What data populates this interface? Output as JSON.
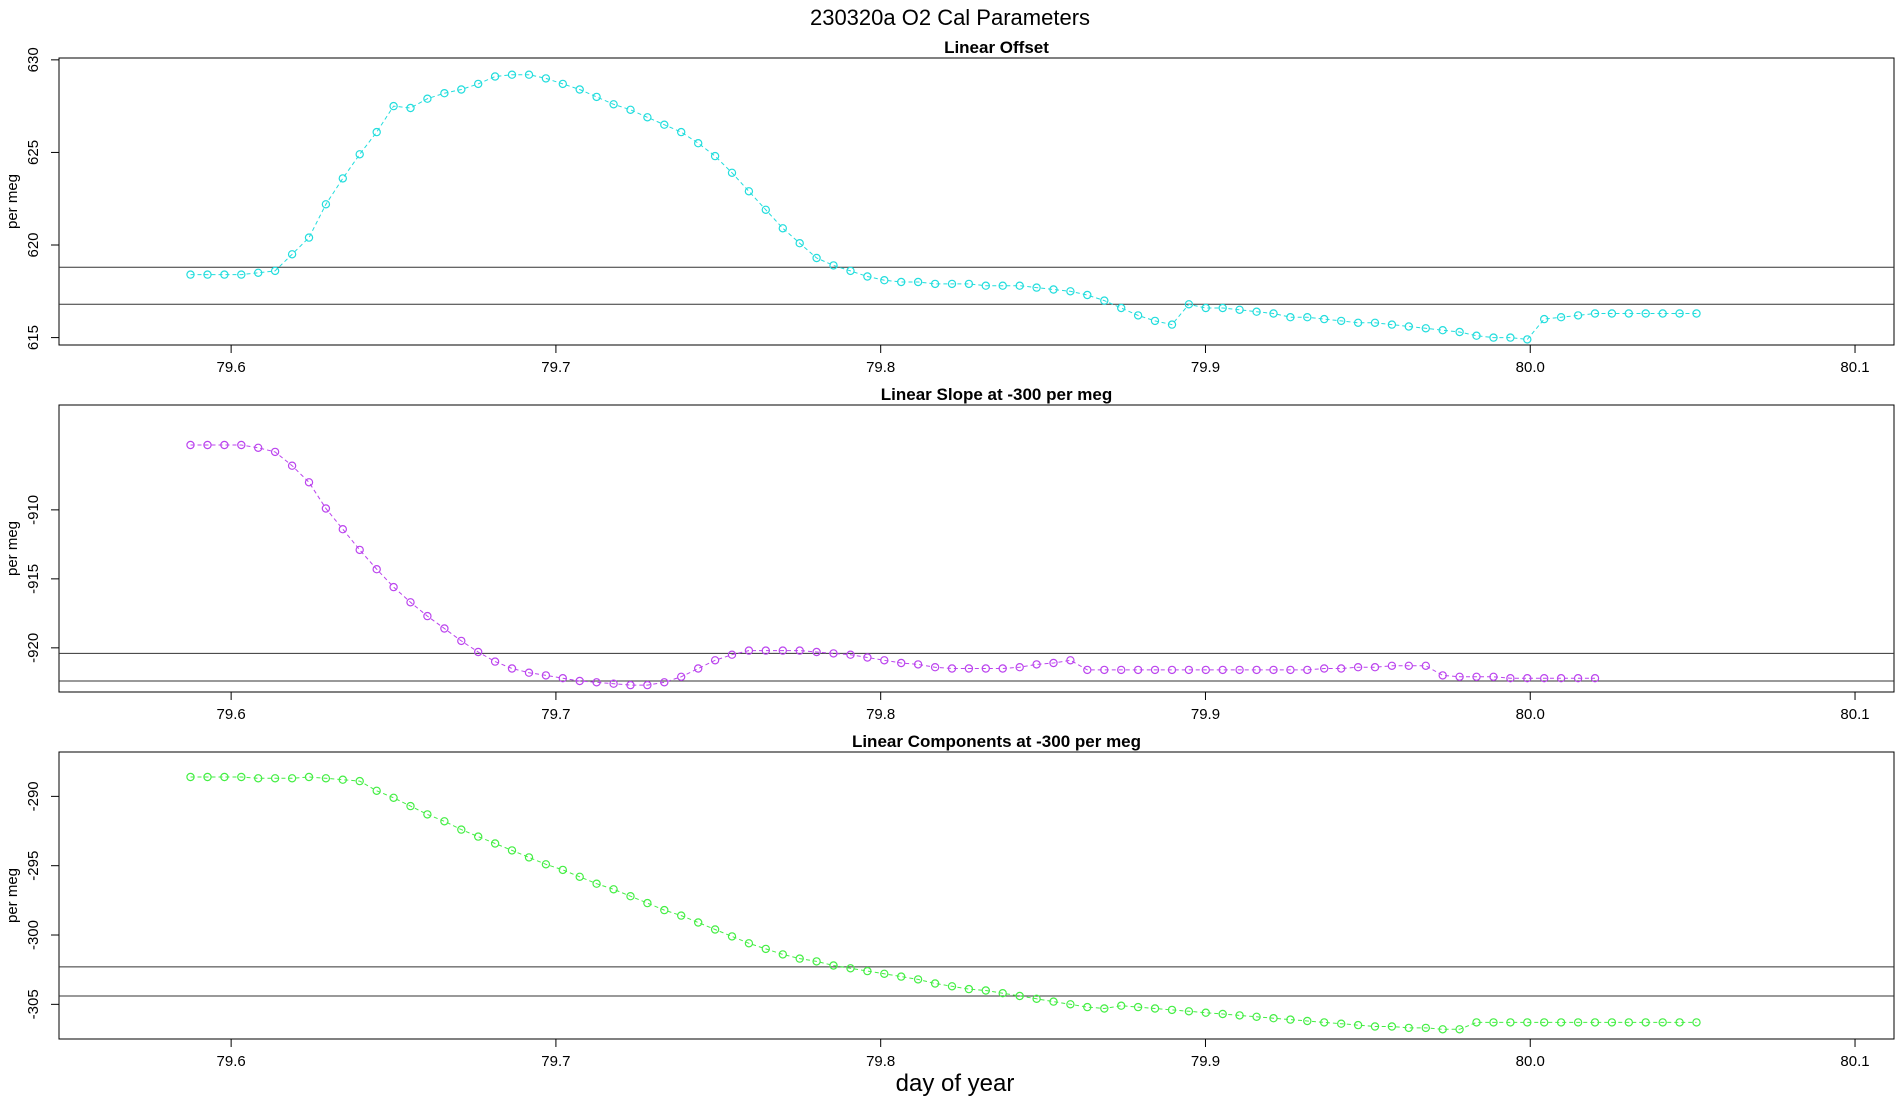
{
  "figure": {
    "title": "230320a   O2 Cal Parameters",
    "xlabel": "day of year"
  },
  "chart_data": [
    {
      "type": "scatter",
      "title": "Linear Offset",
      "ylabel": "per meg",
      "xlim": [
        79.547,
        80.112
      ],
      "ylim": [
        614.6,
        630.1
      ],
      "xticks": [
        79.6,
        79.7,
        79.8,
        79.9,
        80.0,
        80.1
      ],
      "xtick_labels": [
        "79.6",
        "79.7",
        "79.8",
        "79.9",
        "80.0",
        "80.1"
      ],
      "yticks": [
        615,
        620,
        625,
        630
      ],
      "ytick_labels": [
        "615",
        "620",
        "625",
        "630"
      ],
      "hlines": [
        618.8,
        616.8
      ],
      "color": "#22dddd",
      "x_start": 79.5875,
      "x_step": 0.00521,
      "values": [
        618.4,
        618.4,
        618.4,
        618.4,
        618.5,
        618.6,
        619.5,
        620.4,
        622.2,
        623.6,
        624.9,
        626.1,
        627.5,
        627.4,
        627.9,
        628.2,
        628.4,
        628.7,
        629.1,
        629.2,
        629.2,
        629.0,
        628.7,
        628.4,
        628.0,
        627.6,
        627.3,
        626.9,
        626.5,
        626.1,
        625.5,
        624.8,
        623.9,
        622.9,
        621.9,
        620.9,
        620.1,
        619.3,
        618.9,
        618.6,
        618.3,
        618.1,
        618.0,
        618.0,
        617.9,
        617.9,
        617.9,
        617.8,
        617.8,
        617.8,
        617.7,
        617.6,
        617.5,
        617.3,
        617.0,
        616.6,
        616.2,
        615.9,
        615.7,
        616.8,
        616.6,
        616.6,
        616.5,
        616.4,
        616.3,
        616.1,
        616.1,
        616.0,
        615.9,
        615.8,
        615.8,
        615.7,
        615.6,
        615.5,
        615.4,
        615.3,
        615.1,
        615.0,
        615.0,
        614.9,
        616.0,
        616.1,
        616.2,
        616.3,
        616.3,
        616.3,
        616.3,
        616.3,
        616.3,
        616.3
      ]
    },
    {
      "type": "scatter",
      "title": "Linear Slope at -300 per meg",
      "ylabel": "per meg",
      "xlim": [
        79.547,
        80.112
      ],
      "ylim": [
        -923.2,
        -902.4
      ],
      "xticks": [
        79.6,
        79.7,
        79.8,
        79.9,
        80.0,
        80.1
      ],
      "xtick_labels": [
        "79.6",
        "79.7",
        "79.8",
        "79.9",
        "80.0",
        "80.1"
      ],
      "yticks": [
        -920,
        -915,
        -910
      ],
      "ytick_labels": [
        "-920",
        "-915",
        "-910"
      ],
      "hlines": [
        -920.4,
        -922.4
      ],
      "color": "#bb44ee",
      "x_start": 79.5875,
      "x_step": 0.00521,
      "values": [
        -905.3,
        -905.3,
        -905.3,
        -905.3,
        -905.5,
        -905.8,
        -906.8,
        -908.0,
        -909.9,
        -911.4,
        -912.9,
        -914.3,
        -915.6,
        -916.7,
        -917.7,
        -918.6,
        -919.5,
        -920.3,
        -921.0,
        -921.5,
        -921.8,
        -922.0,
        -922.2,
        -922.4,
        -922.5,
        -922.6,
        -922.7,
        -922.7,
        -922.5,
        -922.1,
        -921.5,
        -920.9,
        -920.5,
        -920.2,
        -920.2,
        -920.2,
        -920.2,
        -920.3,
        -920.4,
        -920.5,
        -920.7,
        -920.9,
        -921.1,
        -921.2,
        -921.4,
        -921.5,
        -921.5,
        -921.5,
        -921.5,
        -921.4,
        -921.2,
        -921.1,
        -920.9,
        -921.6,
        -921.6,
        -921.6,
        -921.6,
        -921.6,
        -921.6,
        -921.6,
        -921.6,
        -921.6,
        -921.6,
        -921.6,
        -921.6,
        -921.6,
        -921.6,
        -921.5,
        -921.5,
        -921.4,
        -921.4,
        -921.3,
        -921.3,
        -921.3,
        -922.0,
        -922.1,
        -922.1,
        -922.1,
        -922.2,
        -922.2,
        -922.2,
        -922.2,
        -922.2,
        -922.2
      ]
    },
    {
      "type": "scatter",
      "title": "Linear Components at -300 per meg",
      "ylabel": "per meg",
      "xlim": [
        79.547,
        80.112
      ],
      "ylim": [
        -307.5,
        -286.8
      ],
      "xticks": [
        79.6,
        79.7,
        79.8,
        79.9,
        80.0,
        80.1
      ],
      "xtick_labels": [
        "79.6",
        "79.7",
        "79.8",
        "79.9",
        "80.0",
        "80.1"
      ],
      "yticks": [
        -305,
        -300,
        -295,
        -290
      ],
      "ytick_labels": [
        "-305",
        "-300",
        "-295",
        "-290"
      ],
      "hlines": [
        -302.3,
        -304.4
      ],
      "color": "#44ee44",
      "x_start": 79.5875,
      "x_step": 0.00521,
      "values": [
        -288.6,
        -288.6,
        -288.6,
        -288.6,
        -288.7,
        -288.7,
        -288.7,
        -288.6,
        -288.7,
        -288.8,
        -288.9,
        -289.6,
        -290.1,
        -290.7,
        -291.3,
        -291.8,
        -292.4,
        -292.9,
        -293.4,
        -293.9,
        -294.4,
        -294.9,
        -295.3,
        -295.8,
        -296.3,
        -296.7,
        -297.2,
        -297.7,
        -298.2,
        -298.6,
        -299.1,
        -299.6,
        -300.1,
        -300.6,
        -301.0,
        -301.4,
        -301.7,
        -301.9,
        -302.2,
        -302.4,
        -302.6,
        -302.8,
        -303.0,
        -303.2,
        -303.5,
        -303.7,
        -303.9,
        -304.0,
        -304.2,
        -304.4,
        -304.6,
        -304.8,
        -305.0,
        -305.2,
        -305.3,
        -305.1,
        -305.2,
        -305.3,
        -305.4,
        -305.5,
        -305.6,
        -305.7,
        -305.8,
        -305.9,
        -306.0,
        -306.1,
        -306.2,
        -306.3,
        -306.4,
        -306.5,
        -306.6,
        -306.6,
        -306.7,
        -306.7,
        -306.8,
        -306.8,
        -306.3,
        -306.3,
        -306.3,
        -306.3,
        -306.3,
        -306.3,
        -306.3,
        -306.3,
        -306.3,
        -306.3,
        -306.3,
        -306.3,
        -306.3,
        -306.3
      ]
    }
  ]
}
